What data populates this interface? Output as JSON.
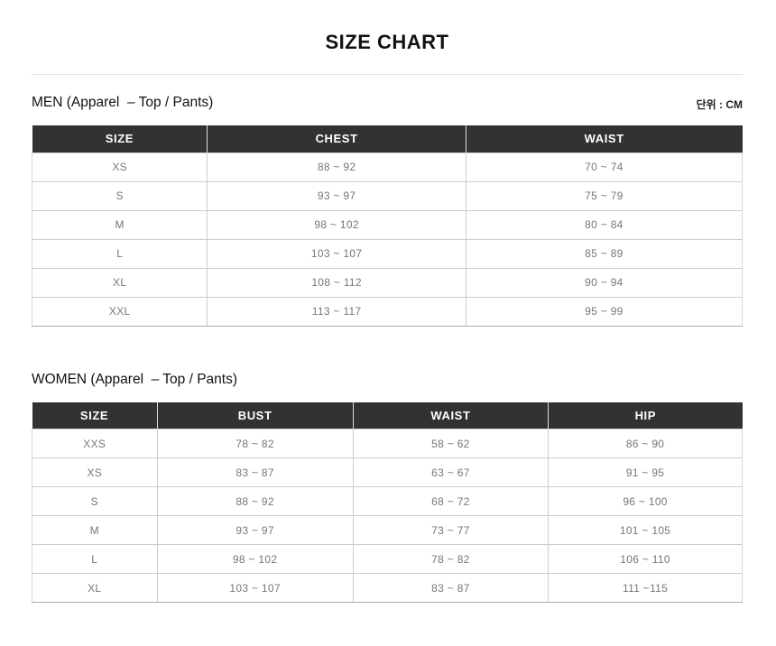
{
  "page": {
    "title": "SIZE CHART",
    "unit_label": "단위 : CM"
  },
  "tables": [
    {
      "id": "men",
      "section_title": "MEN (Apparel  – Top / Pants)",
      "columns": [
        "SIZE",
        "CHEST",
        "WAIST"
      ],
      "col_widths": [
        "24.7%",
        "36.4%",
        "38.9%"
      ],
      "rows": [
        [
          "XS",
          "88 ~ 92",
          "70 ~ 74"
        ],
        [
          "S",
          "93 ~ 97",
          "75 ~ 79"
        ],
        [
          "M",
          "98 ~ 102",
          "80 ~ 84"
        ],
        [
          "L",
          "103 ~ 107",
          "85 ~ 89"
        ],
        [
          "XL",
          "108 ~ 112",
          "90 ~ 94"
        ],
        [
          "XXL",
          "113 ~ 117",
          "95 ~ 99"
        ]
      ]
    },
    {
      "id": "women",
      "section_title": "WOMEN (Apparel  – Top / Pants)",
      "columns": [
        "SIZE",
        "BUST",
        "WAIST",
        "HIP"
      ],
      "col_widths": [
        "17.6%",
        "27.6%",
        "27.5%",
        "27.3%"
      ],
      "rows": [
        [
          "XXS",
          "78 ~ 82",
          "58 ~ 62",
          "86 ~ 90"
        ],
        [
          "XS",
          "83 ~ 87",
          "63 ~ 67",
          "91 ~ 95"
        ],
        [
          "S",
          "88 ~ 92",
          "68 ~ 72",
          "96 ~ 100"
        ],
        [
          "M",
          "93 ~ 97",
          "73 ~ 77",
          "101 ~ 105"
        ],
        [
          "L",
          "98 ~ 102",
          "78 ~ 82",
          "106 ~ 110"
        ],
        [
          "XL",
          "103 ~ 107",
          "83 ~ 87",
          "111 ~115"
        ]
      ]
    }
  ],
  "colors": {
    "header_bg": "#323234",
    "header_text": "#ffffff",
    "body_text": "#777777",
    "cell_border": "#cccccc",
    "table_bottom_border": "#ababab",
    "divider": "#e2e2e2",
    "background": "#ffffff"
  }
}
